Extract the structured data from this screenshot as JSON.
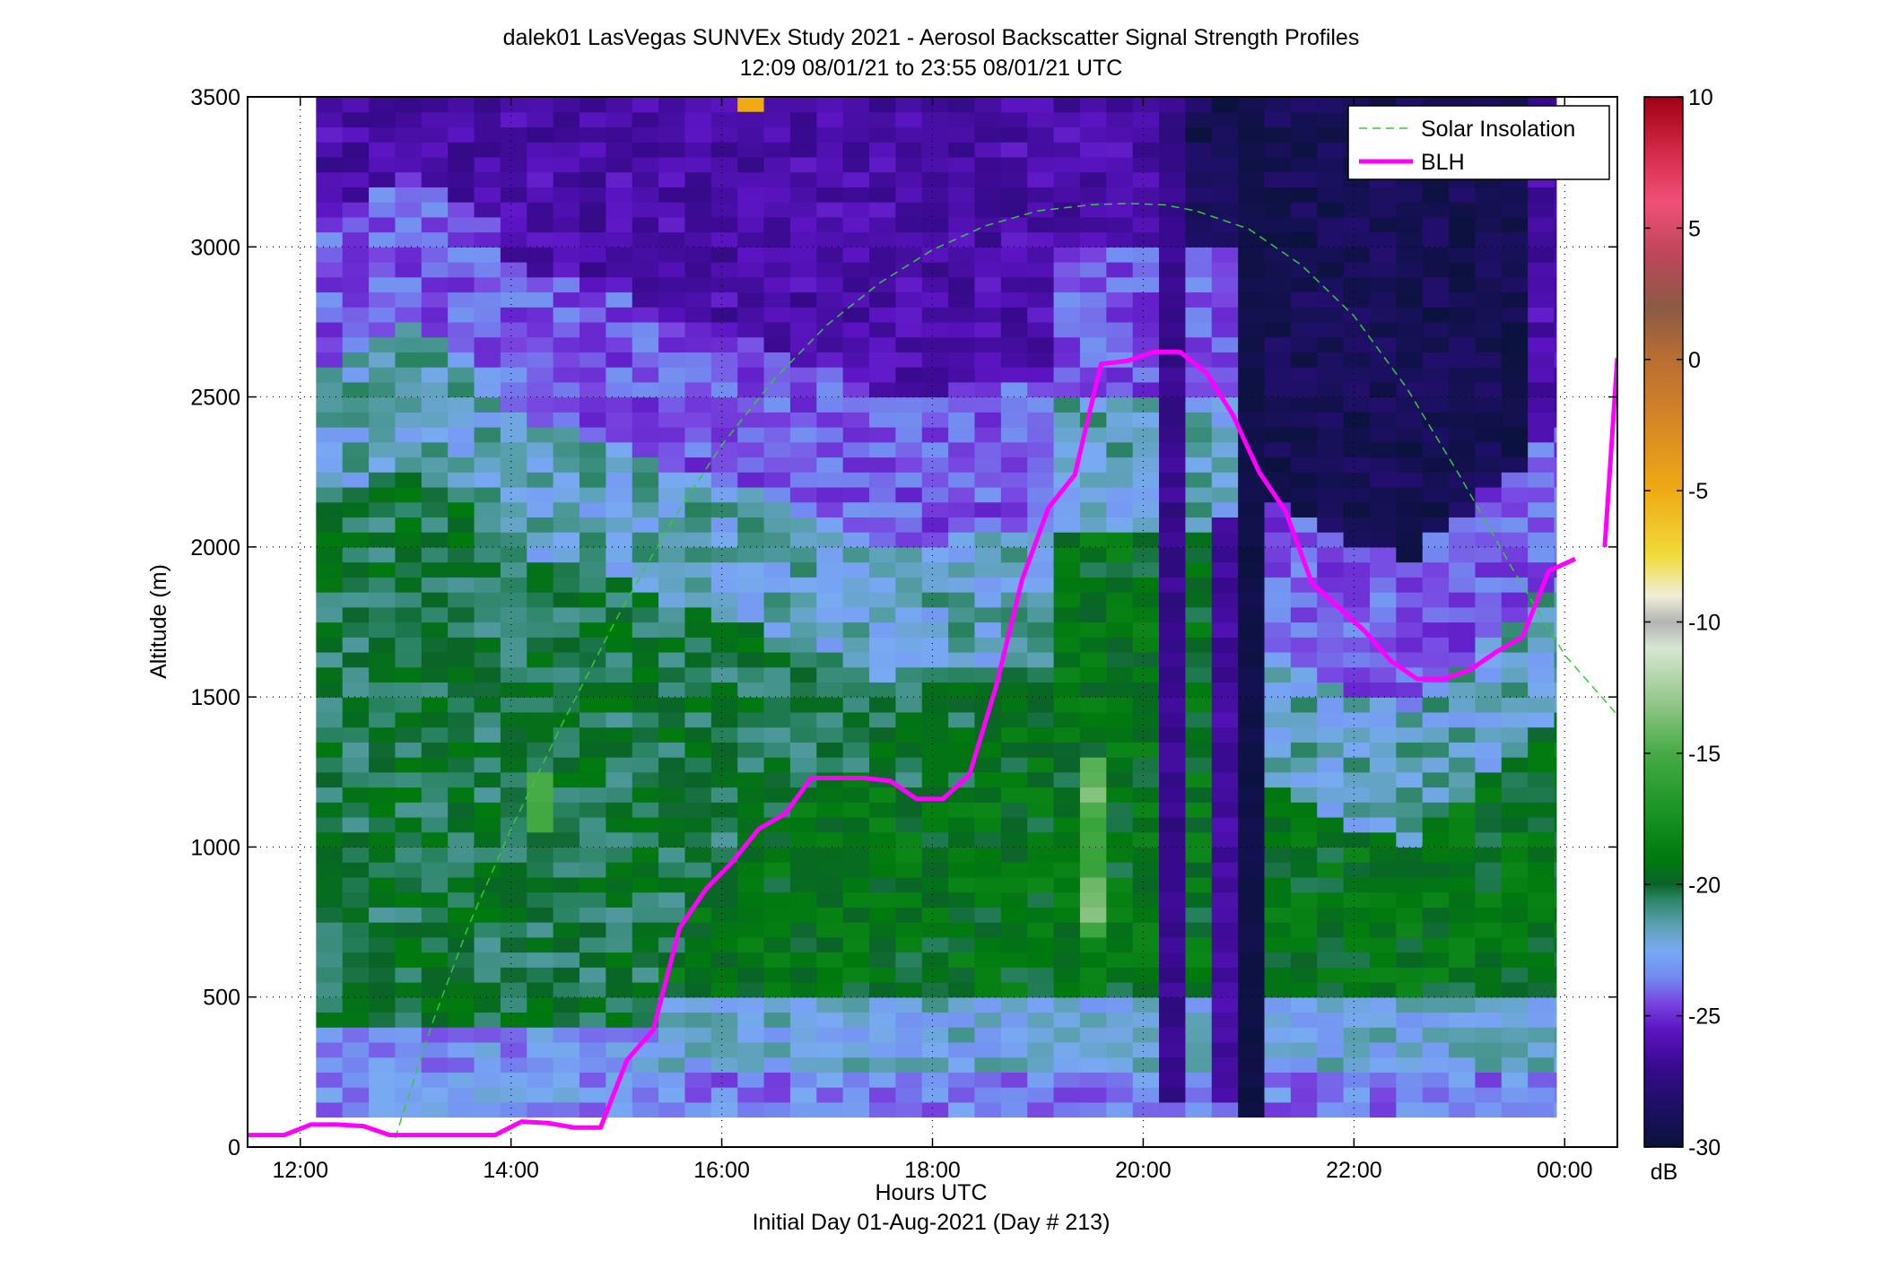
{
  "chart_data": {
    "type": "heatmap",
    "title": "dalek01 LasVegas SUNVEx Study 2021 - Aerosol Backscatter Signal Strength Profiles",
    "subtitle": "12:09 08/01/21 to 23:55 08/01/21  UTC",
    "xlabel": "Hours UTC",
    "xlabel2": "Initial Day 01-Aug-2021 (Day # 213)",
    "ylabel": "Altitude (m)",
    "colorbar_label": "dB",
    "xlim": [
      11.5,
      24.5
    ],
    "ylim": [
      0,
      3500
    ],
    "clim": [
      -30,
      10
    ],
    "grid": true,
    "legend_position": "top-right",
    "x_ticks": [
      {
        "value": 12,
        "label": "12:00"
      },
      {
        "value": 14,
        "label": "14:00"
      },
      {
        "value": 16,
        "label": "16:00"
      },
      {
        "value": 18,
        "label": "18:00"
      },
      {
        "value": 20,
        "label": "20:00"
      },
      {
        "value": 22,
        "label": "22:00"
      },
      {
        "value": 24,
        "label": "00:00"
      }
    ],
    "y_ticks": [
      {
        "value": 0,
        "label": "0"
      },
      {
        "value": 500,
        "label": "500"
      },
      {
        "value": 1000,
        "label": "1000"
      },
      {
        "value": 1500,
        "label": "1500"
      },
      {
        "value": 2000,
        "label": "2000"
      },
      {
        "value": 2500,
        "label": "2500"
      },
      {
        "value": 3000,
        "label": "3000"
      },
      {
        "value": 3500,
        "label": "3500"
      }
    ],
    "colorbar_ticks": [
      {
        "value": 10,
        "label": "10"
      },
      {
        "value": 5,
        "label": "5"
      },
      {
        "value": 0,
        "label": "0"
      },
      {
        "value": -5,
        "label": "-5"
      },
      {
        "value": -10,
        "label": "-10"
      },
      {
        "value": -15,
        "label": "-15"
      },
      {
        "value": -20,
        "label": "-20"
      },
      {
        "value": -25,
        "label": "-25"
      },
      {
        "value": -30,
        "label": "-30"
      }
    ],
    "heatmap_extent": {
      "x_start": 12.15,
      "x_end": 23.92,
      "y_start": 100,
      "y_end": 3500
    },
    "series": [
      {
        "name": "Solar Insolation",
        "style": "dashed",
        "color": "#33cc33",
        "x": [
          12.9,
          13.25,
          13.6,
          14.0,
          14.5,
          15.0,
          15.5,
          16.0,
          16.5,
          17.0,
          17.5,
          18.0,
          18.5,
          19.0,
          19.5,
          19.85,
          20.2,
          20.5,
          21.0,
          21.5,
          22.0,
          22.5,
          23.0,
          23.5,
          24.0,
          24.5
        ],
        "y": [
          30,
          410,
          740,
          1060,
          1420,
          1760,
          2070,
          2340,
          2560,
          2740,
          2880,
          2990,
          3070,
          3120,
          3140,
          3145,
          3140,
          3120,
          3060,
          2940,
          2770,
          2530,
          2240,
          1930,
          1640,
          1440
        ]
      },
      {
        "name": "BLH",
        "style": "solid",
        "color": "#ff00ff",
        "x": [
          11.5,
          11.85,
          12.1,
          12.35,
          12.6,
          12.85,
          13.1,
          13.35,
          13.6,
          13.85,
          14.1,
          14.35,
          14.6,
          14.85,
          15.1,
          15.35,
          15.6,
          15.85,
          16.1,
          16.35,
          16.6,
          16.85,
          17.1,
          17.35,
          17.6,
          17.85,
          18.1,
          18.35,
          18.6,
          18.85,
          19.1,
          19.35,
          19.6,
          19.85,
          20.1,
          20.35,
          20.6,
          20.85,
          21.1,
          21.35,
          21.6,
          21.85,
          22.1,
          22.35,
          22.6,
          22.85,
          23.1,
          23.35,
          23.6,
          23.85,
          24.1
        ],
        "y": [
          40,
          40,
          75,
          75,
          70,
          40,
          40,
          40,
          40,
          40,
          85,
          80,
          65,
          65,
          290,
          390,
          730,
          860,
          950,
          1060,
          1110,
          1230,
          1230,
          1230,
          1220,
          1160,
          1160,
          1240,
          1530,
          1890,
          2130,
          2240,
          2610,
          2620,
          2650,
          2650,
          2580,
          2440,
          2250,
          2120,
          1880,
          1800,
          1720,
          1620,
          1560,
          1560,
          1590,
          1650,
          1700,
          1920,
          1960
        ]
      },
      {
        "name": "",
        "style": "solid",
        "color": "#ff00ff",
        "x": [
          24.38,
          24.5
        ],
        "y": [
          2000,
          2630
        ]
      }
    ]
  },
  "legend": {
    "solar_label": "Solar Insolation",
    "blh_label": "BLH"
  }
}
